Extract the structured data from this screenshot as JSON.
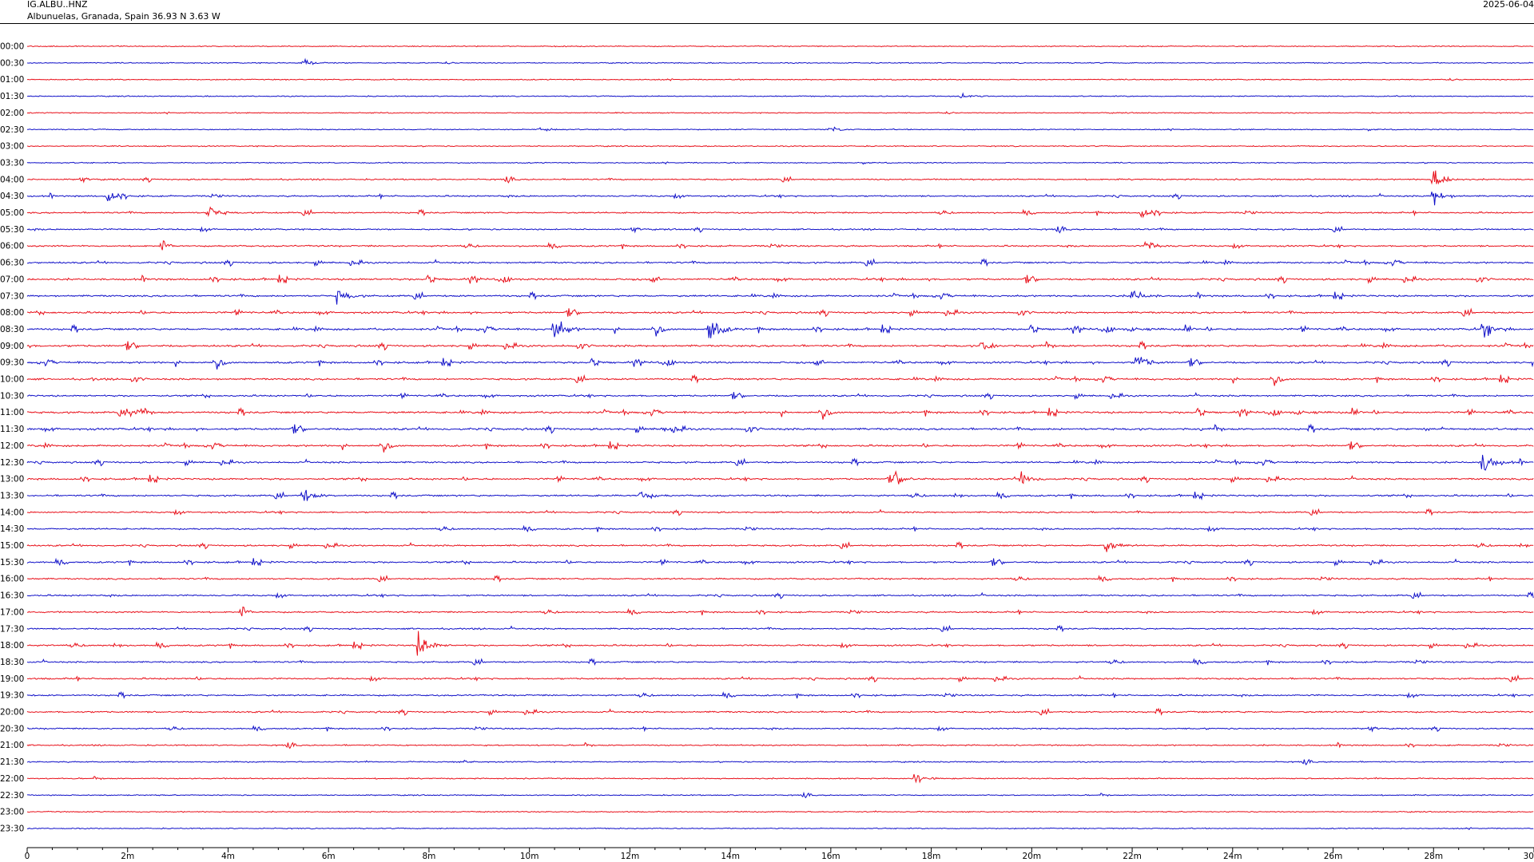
{
  "header": {
    "station_code": "IG.ALBU..HNZ",
    "station_location": "Albunuelas, Granada, Spain  36.93 N 3.63 W",
    "date": "2025-06-04"
  },
  "colors": {
    "red_trace": "#e8101a",
    "blue_trace": "#1010c8",
    "axis": "#000000"
  },
  "chart_data": {
    "type": "line",
    "title": "",
    "xlabel": "",
    "ylabel": "",
    "x_range_minutes": [
      0,
      30
    ],
    "x_ticks": [
      "0",
      "2m",
      "4m",
      "6m",
      "8m",
      "10m",
      "12m",
      "14m",
      "16m",
      "18m",
      "20m",
      "22m",
      "24m",
      "26m",
      "28m",
      "30"
    ],
    "row_labels": [
      "00:00",
      "00:30",
      "01:00",
      "01:30",
      "02:00",
      "02:30",
      "03:00",
      "03:30",
      "04:00",
      "04:30",
      "05:00",
      "05:30",
      "06:00",
      "06:30",
      "07:00",
      "07:30",
      "08:00",
      "08:30",
      "09:00",
      "09:30",
      "10:00",
      "10:30",
      "11:00",
      "11:30",
      "12:00",
      "12:30",
      "13:00",
      "13:30",
      "14:00",
      "14:30",
      "15:00",
      "15:30",
      "16:00",
      "16:30",
      "17:00",
      "17:30",
      "18:00",
      "18:30",
      "19:00",
      "19:30",
      "20:00",
      "20:30",
      "21:00",
      "21:30",
      "22:00",
      "22:30",
      "23:00",
      "23:30"
    ],
    "row_colors": [
      "red",
      "blue"
    ],
    "activity_level": [
      0.05,
      0.05,
      0.05,
      0.05,
      0.05,
      0.08,
      0.08,
      0.08,
      0.35,
      0.45,
      0.45,
      0.4,
      0.5,
      0.65,
      0.8,
      0.7,
      0.8,
      0.85,
      0.9,
      0.8,
      0.75,
      0.6,
      0.85,
      0.95,
      0.75,
      0.65,
      0.7,
      0.6,
      0.5,
      0.5,
      0.55,
      0.65,
      0.5,
      0.5,
      0.5,
      0.45,
      0.55,
      0.5,
      0.55,
      0.5,
      0.55,
      0.35,
      0.3,
      0.2,
      0.15,
      0.1,
      0.08,
      0.06
    ],
    "events": [
      {
        "row": 1,
        "minute": 5.5,
        "amplitude": 1.2
      },
      {
        "row": 3,
        "minute": 18.6,
        "amplitude": 0.8
      },
      {
        "row": 5,
        "minute": 10.2,
        "amplitude": 0.8
      },
      {
        "row": 5,
        "minute": 16.0,
        "amplitude": 0.7
      },
      {
        "row": 8,
        "minute": 28.0,
        "amplitude": 3.5
      },
      {
        "row": 9,
        "minute": 1.6,
        "amplitude": 2.0
      },
      {
        "row": 9,
        "minute": 28.0,
        "amplitude": 2.5
      },
      {
        "row": 10,
        "minute": 3.6,
        "amplitude": 2.0
      },
      {
        "row": 10,
        "minute": 22.2,
        "amplitude": 1.5
      },
      {
        "row": 12,
        "minute": 22.3,
        "amplitude": 1.5
      },
      {
        "row": 15,
        "minute": 6.2,
        "amplitude": 1.8
      },
      {
        "row": 15,
        "minute": 22.0,
        "amplitude": 2.0
      },
      {
        "row": 17,
        "minute": 10.5,
        "amplitude": 3.5
      },
      {
        "row": 17,
        "minute": 13.6,
        "amplitude": 3.5
      },
      {
        "row": 17,
        "minute": 29.0,
        "amplitude": 2.0
      },
      {
        "row": 18,
        "minute": 19.0,
        "amplitude": 2.0
      },
      {
        "row": 19,
        "minute": 22.1,
        "amplitude": 2.5
      },
      {
        "row": 25,
        "minute": 29.0,
        "amplitude": 3.5
      },
      {
        "row": 26,
        "minute": 17.3,
        "amplitude": 1.8
      },
      {
        "row": 26,
        "minute": 19.8,
        "amplitude": 2.0
      },
      {
        "row": 27,
        "minute": 5.5,
        "amplitude": 2.0
      },
      {
        "row": 27,
        "minute": 12.2,
        "amplitude": 1.5
      },
      {
        "row": 30,
        "minute": 21.5,
        "amplitude": 1.5
      },
      {
        "row": 36,
        "minute": 7.8,
        "amplitude": 4.0
      },
      {
        "row": 44,
        "minute": 17.7,
        "amplitude": 1.5
      }
    ]
  }
}
